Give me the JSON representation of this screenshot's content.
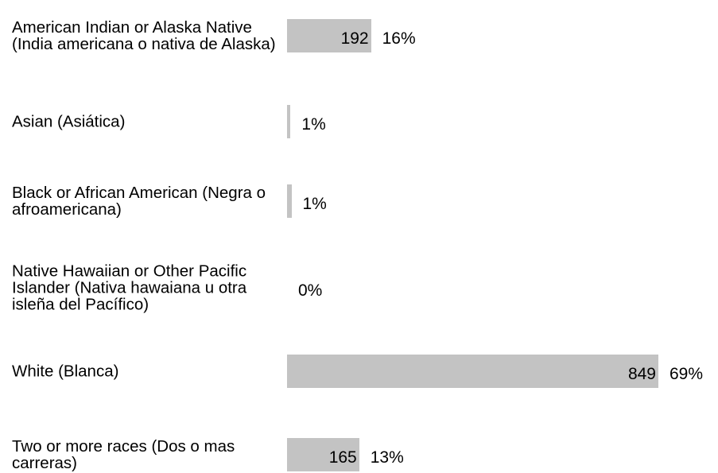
{
  "chart_data": {
    "type": "bar",
    "orientation": "horizontal",
    "categories": [
      "American Indian or Alaska Native (India americana o nativa de Alaska)",
      "Asian (Asiática)",
      "Black or African American (Negra o afroamericana)",
      "Native Hawaiian or Other Pacific Islander (Nativa hawaiana u otra isleña del Pacífico)",
      "White (Blanca)",
      "Two or more races (Dos o mas carreras)"
    ],
    "values": [
      192,
      8,
      10,
      0,
      849,
      165
    ],
    "value_labels": [
      "192",
      null,
      null,
      null,
      "849",
      "165"
    ],
    "percent_labels": [
      "16%",
      "1%",
      "1%",
      "0%",
      "69%",
      "13%"
    ],
    "color": "#c3c3c3",
    "xlim": [
      0,
      849
    ]
  }
}
